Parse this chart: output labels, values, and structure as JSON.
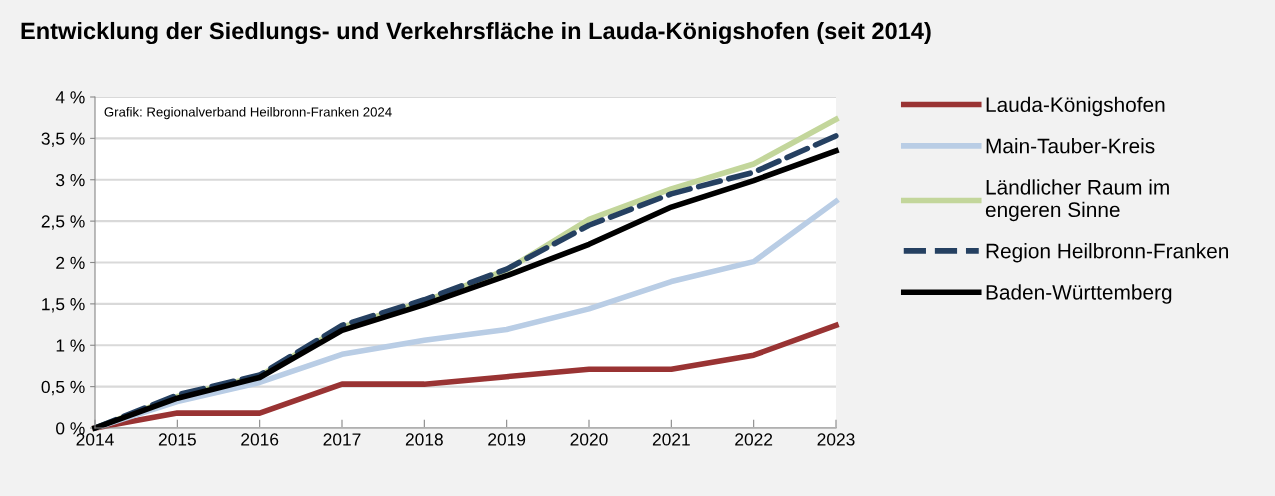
{
  "chart_data": {
    "type": "line",
    "title": "Entwicklung der Siedlungs- und Verkehrsfläche in Lauda-Königshofen (seit 2014)",
    "annotations": [
      "Grafik: Regionalverband Heilbronn-Franken 2024"
    ],
    "x": [
      2014,
      2015,
      2016,
      2017,
      2018,
      2019,
      2020,
      2021,
      2022,
      2023
    ],
    "series": [
      {
        "name": "Lauda-Königshofen",
        "color": "#993333",
        "values": [
          0,
          0.18,
          0.18,
          0.53,
          0.53,
          0.62,
          0.71,
          0.71,
          0.88,
          1.24
        ]
      },
      {
        "name": "Main-Tauber-Kreis",
        "color": "#b9cde5",
        "values": [
          0,
          0.32,
          0.55,
          0.89,
          1.06,
          1.19,
          1.44,
          1.77,
          2.01,
          2.74
        ]
      },
      {
        "name": "Ländlicher Raum im\nengeren Sinne",
        "color": "#c3d69b",
        "values": [
          0,
          0.38,
          0.63,
          1.22,
          1.53,
          1.91,
          2.52,
          2.89,
          3.19,
          3.73
        ]
      },
      {
        "name": "Region Heilbronn-Franken",
        "color": "#254061",
        "line_style": "dashed",
        "values": [
          0,
          0.4,
          0.64,
          1.24,
          1.55,
          1.92,
          2.45,
          2.83,
          3.09,
          3.53
        ]
      },
      {
        "name": "Baden-Württemberg",
        "color": "#000000",
        "values": [
          0,
          0.36,
          0.61,
          1.18,
          1.49,
          1.84,
          2.22,
          2.67,
          2.99,
          3.35
        ]
      }
    ],
    "xlim": [
      2014,
      2023
    ],
    "xticks": [
      2014,
      2015,
      2016,
      2017,
      2018,
      2019,
      2020,
      2021,
      2022,
      2023
    ],
    "ylim": [
      0,
      4
    ],
    "yticks": [
      {
        "value": 0,
        "label": "0 %"
      },
      {
        "value": 0.5,
        "label": "0,5 %"
      },
      {
        "value": 1,
        "label": "1 %"
      },
      {
        "value": 1.5,
        "label": "1,5 %"
      },
      {
        "value": 2,
        "label": "2 %"
      },
      {
        "value": 2.5,
        "label": "2,5 %"
      },
      {
        "value": 3,
        "label": "3 %"
      },
      {
        "value": 3.5,
        "label": "3,5 %"
      },
      {
        "value": 4,
        "label": "4 %"
      }
    ],
    "grid": "y",
    "legend": "right",
    "marker": "none",
    "line_style": "solid"
  }
}
